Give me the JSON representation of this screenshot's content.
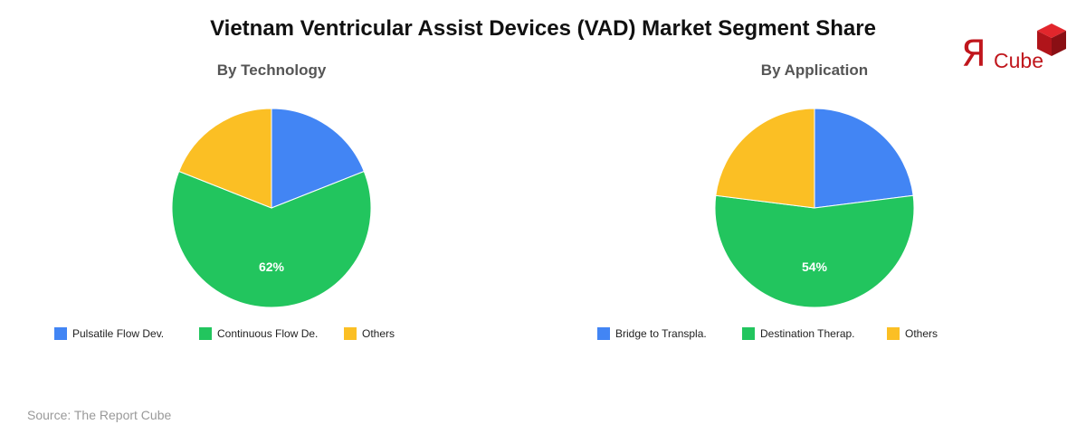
{
  "title": "Vietnam Ventricular Assist Devices (VAD) Market Segment Share",
  "source": "Source: The Report Cube",
  "logo": {
    "letter": "Я",
    "text": "Cube",
    "color": "#c0161c"
  },
  "chart_data": [
    {
      "type": "pie",
      "title": "By Technology",
      "categories": [
        "Pulsatile Flow Dev.",
        "Continuous Flow De.",
        "Others"
      ],
      "values": [
        19,
        62,
        19
      ],
      "colors": [
        "#4285f4",
        "#22c55e",
        "#fbbf24"
      ],
      "data_labels": [
        "",
        "62%",
        ""
      ],
      "legend_position": "bottom-left"
    },
    {
      "type": "pie",
      "title": "By Application",
      "categories": [
        "Bridge to Transpla.",
        "Destination Therap.",
        "Others"
      ],
      "values": [
        23,
        54,
        23
      ],
      "colors": [
        "#4285f4",
        "#22c55e",
        "#fbbf24"
      ],
      "data_labels": [
        "",
        "54%",
        ""
      ],
      "legend_position": "bottom-left"
    }
  ]
}
